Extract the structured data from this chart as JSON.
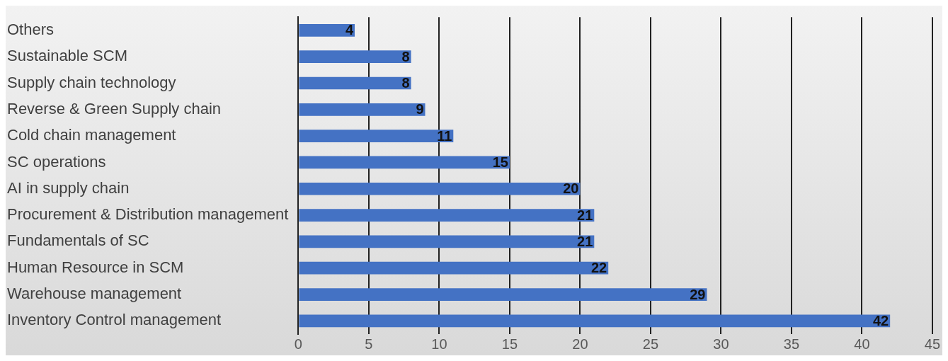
{
  "chart_data": {
    "type": "bar",
    "orientation": "horizontal",
    "categories": [
      "Others",
      "Sustainable SCM",
      "Supply chain technology",
      "Reverse & Green Supply chain",
      "Cold chain management",
      "SC operations",
      "AI in supply chain",
      "Procurement & Distribution management",
      "Fundamentals of SC",
      "Human Resource in SCM",
      "Warehouse management",
      "Inventory Control management"
    ],
    "values": [
      4,
      8,
      8,
      9,
      11,
      15,
      20,
      21,
      21,
      22,
      29,
      42
    ],
    "color": "#4472c4",
    "xlim": [
      0,
      45
    ],
    "xticks": [
      0,
      5,
      10,
      15,
      20,
      25,
      30,
      35,
      40,
      45
    ],
    "grid": "x",
    "data_labels": true
  }
}
